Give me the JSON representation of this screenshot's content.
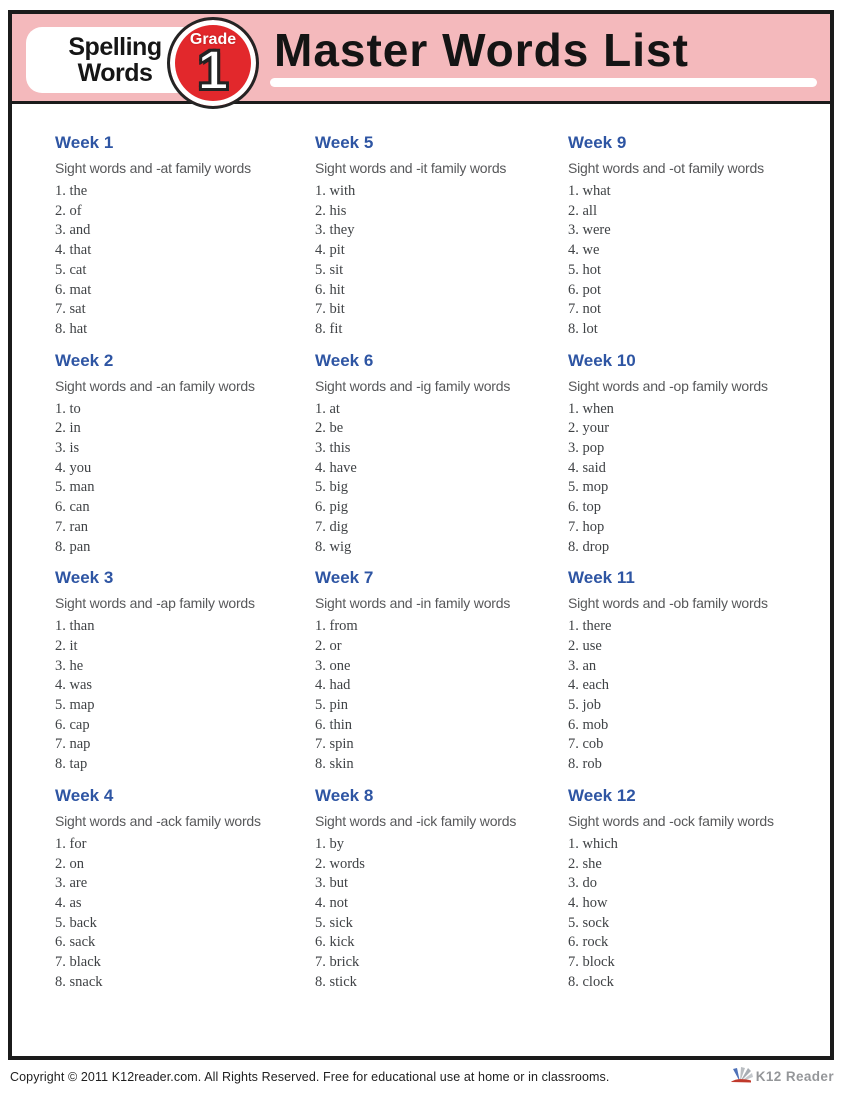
{
  "header": {
    "brand_line1": "Spelling",
    "brand_line2": "Words",
    "grade_label": "Grade",
    "grade_number": "1",
    "title": "Master Words List"
  },
  "weeks": [
    {
      "title": "Week 1",
      "subtitle": "Sight words and -at family words",
      "words": [
        "the",
        "of",
        "and",
        "that",
        "cat",
        "mat",
        "sat",
        "hat"
      ]
    },
    {
      "title": "Week 2",
      "subtitle": "Sight words and -an family words",
      "words": [
        "to",
        "in",
        "is",
        "you",
        "man",
        "can",
        "ran",
        "pan"
      ]
    },
    {
      "title": "Week 3",
      "subtitle": "Sight words and -ap family words",
      "words": [
        "than",
        "it",
        "he",
        "was",
        "map",
        "cap",
        "nap",
        "tap"
      ]
    },
    {
      "title": "Week 4",
      "subtitle": "Sight words and -ack family words",
      "words": [
        "for",
        "on",
        "are",
        "as",
        "back",
        "sack",
        "black",
        "snack"
      ]
    },
    {
      "title": "Week 5",
      "subtitle": "Sight words and -it family words",
      "words": [
        "with",
        "his",
        "they",
        "pit",
        "sit",
        "hit",
        "bit",
        "fit"
      ]
    },
    {
      "title": "Week 6",
      "subtitle": "Sight words and -ig family words",
      "words": [
        "at",
        "be",
        "this",
        "have",
        "big",
        "pig",
        "dig",
        "wig"
      ]
    },
    {
      "title": "Week 7",
      "subtitle": "Sight words and -in family words",
      "words": [
        "from",
        "or",
        "one",
        "had",
        "pin",
        "thin",
        "spin",
        "skin"
      ]
    },
    {
      "title": "Week 8",
      "subtitle": "Sight words and -ick family words",
      "words": [
        "by",
        "words",
        "but",
        "not",
        "sick",
        "kick",
        "brick",
        "stick"
      ]
    },
    {
      "title": "Week 9",
      "subtitle": "Sight words and -ot family words",
      "words": [
        "what",
        "all",
        "were",
        "we",
        "hot",
        "pot",
        "not",
        "lot"
      ]
    },
    {
      "title": "Week 10",
      "subtitle": "Sight words and -op family words",
      "words": [
        "when",
        "your",
        "pop",
        "said",
        "mop",
        "top",
        "hop",
        "drop"
      ]
    },
    {
      "title": "Week 11",
      "subtitle": "Sight words and -ob family words",
      "words": [
        "there",
        "use",
        "an",
        "each",
        "job",
        "mob",
        "cob",
        "rob"
      ]
    },
    {
      "title": "Week 12",
      "subtitle": "Sight words and -ock family words",
      "words": [
        "which",
        "she",
        "do",
        "how",
        "sock",
        "rock",
        "block",
        "clock"
      ]
    }
  ],
  "footer": {
    "copyright": "Copyright © 2011 K12reader.com. All Rights Reserved. Free for educational use at home or in classrooms.",
    "logo_text": "K12 Reader",
    "logo_icon": "fan-leaves-icon"
  },
  "colors": {
    "band_pink": "#f4b9bc",
    "badge_red": "#e2282c",
    "week_heading_blue": "#2e55a3",
    "subtitle_gray": "#57585a",
    "word_text": "#3f4245",
    "border_black": "#1b1b1b",
    "logo_gray": "#95979a"
  }
}
